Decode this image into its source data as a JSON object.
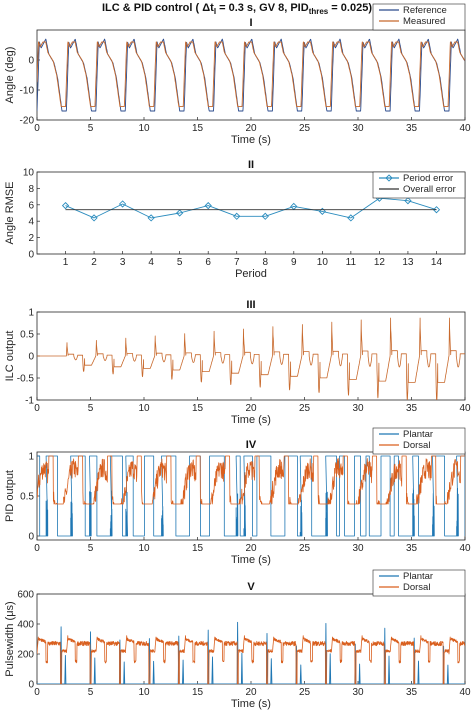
{
  "figure": {
    "title_pre": "ILC & PID control ( ",
    "title_delta": "Δt",
    "title_delta_sub": "I",
    "title_mid": " = 0.3 s, GV 8, PID",
    "title_pid_sub": "thres",
    "title_post": " = 0.025)"
  },
  "chart_data": [
    {
      "id": "I",
      "type": "line",
      "title": "I",
      "xlabel": "Time (s)",
      "ylabel": "Angle (deg)",
      "xlim": [
        0,
        40
      ],
      "ylim": [
        -20,
        10
      ],
      "xticks": [
        0,
        5,
        10,
        15,
        20,
        25,
        30,
        35,
        40
      ],
      "yticks": [
        -20,
        -10,
        0
      ],
      "grid": false,
      "legend_position": "top-right",
      "series": [
        {
          "name": "Reference",
          "color": "#2b4b8c",
          "pattern": "gait_reference",
          "period_s": 2.75,
          "start_s": 0,
          "min": -18,
          "max": 7
        },
        {
          "name": "Measured",
          "color": "#c8692c",
          "pattern": "gait_measured",
          "period_s": 2.75,
          "start_s": 0,
          "min": -18,
          "max": 6
        }
      ]
    },
    {
      "id": "II",
      "type": "line",
      "title": "II",
      "xlabel": "Period",
      "ylabel": "Angle RMSE",
      "xlim": [
        0,
        15
      ],
      "ylim": [
        0,
        10
      ],
      "xticks": [
        1,
        2,
        3,
        4,
        5,
        6,
        7,
        8,
        9,
        10,
        11,
        12,
        13,
        14
      ],
      "yticks": [
        0,
        2,
        4,
        6,
        8,
        10
      ],
      "grid": false,
      "legend_position": "top-right",
      "series": [
        {
          "name": "Period error",
          "color": "#2b8cbe",
          "marker": "diamond",
          "x": [
            1,
            2,
            3,
            4,
            5,
            6,
            7,
            8,
            9,
            10,
            11,
            12,
            13,
            14
          ],
          "values": [
            5.9,
            4.4,
            6.1,
            4.4,
            5.0,
            5.9,
            4.6,
            4.6,
            5.8,
            5.2,
            4.4,
            6.8,
            6.5,
            5.4
          ]
        },
        {
          "name": "Overall error",
          "color": "#333333",
          "x": [
            1,
            14
          ],
          "values": [
            5.4,
            5.4
          ]
        }
      ]
    },
    {
      "id": "III",
      "type": "line",
      "title": "III",
      "xlabel": "Time (s)",
      "ylabel": "ILC output",
      "xlim": [
        0,
        40
      ],
      "ylim": [
        -1,
        1
      ],
      "xticks": [
        0,
        5,
        10,
        15,
        20,
        25,
        30,
        35,
        40
      ],
      "yticks": [
        -1,
        -0.5,
        0,
        0.5,
        1
      ],
      "grid": false,
      "series": [
        {
          "name": "",
          "color": "#c8692c",
          "pattern": "ilc_output",
          "start_s": 2.75,
          "period_s": 2.75,
          "peak_max": 1.0,
          "trough_min": -1.0
        }
      ]
    },
    {
      "id": "IV",
      "type": "line",
      "title": "IV",
      "xlabel": "Time (s)",
      "ylabel": "PID output",
      "xlim": [
        0,
        40
      ],
      "ylim": [
        -0.05,
        1.05
      ],
      "xticks": [
        0,
        5,
        10,
        15,
        20,
        25,
        30,
        35,
        40
      ],
      "yticks": [
        0,
        0.5,
        1
      ],
      "grid": false,
      "legend_position": "top-right",
      "series": [
        {
          "name": "Plantar",
          "color": "#1f77b4",
          "pattern": "pid_switching",
          "levels": [
            0,
            1
          ]
        },
        {
          "name": "Dorsal",
          "color": "#d95f1e",
          "pattern": "pid_noisy",
          "range": [
            0.4,
            1
          ]
        }
      ]
    },
    {
      "id": "V",
      "type": "line",
      "title": "V",
      "xlabel": "Time (s)",
      "ylabel": "Pulsewidth (μs)",
      "xlim": [
        0,
        40
      ],
      "ylim": [
        0,
        600
      ],
      "xticks": [
        0,
        5,
        10,
        15,
        20,
        25,
        30,
        35,
        40
      ],
      "yticks": [
        0,
        200,
        400,
        600
      ],
      "grid": false,
      "legend_position": "top-right",
      "series": [
        {
          "name": "Plantar",
          "color": "#1f77b4",
          "pattern": "pw_spikes",
          "peak": 450
        },
        {
          "name": "Dorsal",
          "color": "#d95f1e",
          "pattern": "pw_plateau",
          "range": [
            150,
            330
          ]
        }
      ]
    }
  ]
}
